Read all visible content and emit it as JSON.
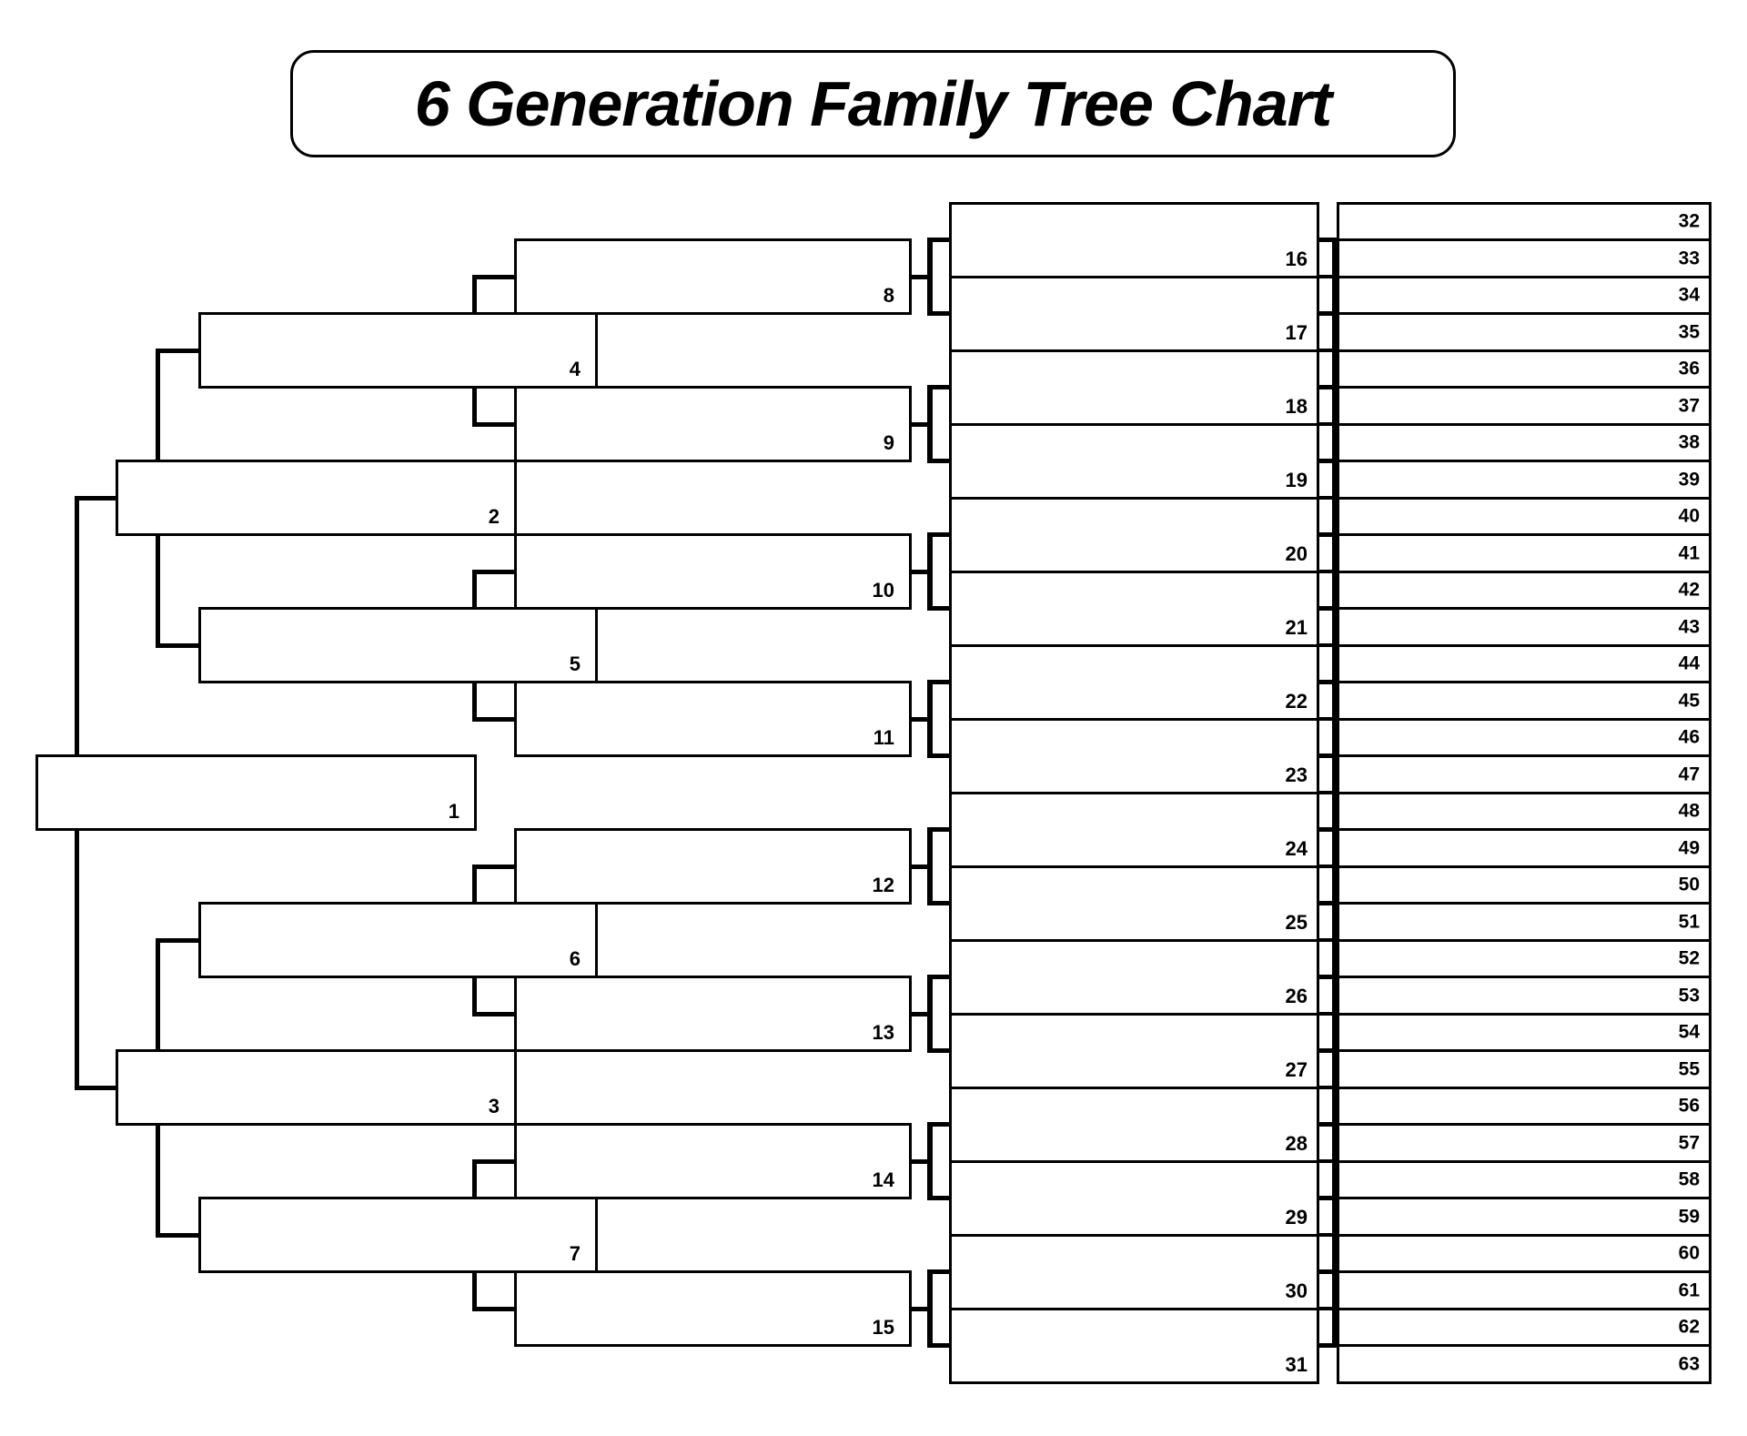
{
  "title": "6 Generation Family Tree Chart",
  "colors": {
    "line": "#000000",
    "background": "#ffffff"
  },
  "boxes": [
    {
      "number": "1"
    },
    {
      "number": "2"
    },
    {
      "number": "3"
    },
    {
      "number": "4"
    },
    {
      "number": "5"
    },
    {
      "number": "6"
    },
    {
      "number": "7"
    },
    {
      "number": "8"
    },
    {
      "number": "9"
    },
    {
      "number": "10"
    },
    {
      "number": "11"
    },
    {
      "number": "12"
    },
    {
      "number": "13"
    },
    {
      "number": "14"
    },
    {
      "number": "15"
    },
    {
      "number": "16"
    },
    {
      "number": "17"
    },
    {
      "number": "18"
    },
    {
      "number": "19"
    },
    {
      "number": "20"
    },
    {
      "number": "21"
    },
    {
      "number": "22"
    },
    {
      "number": "23"
    },
    {
      "number": "24"
    },
    {
      "number": "25"
    },
    {
      "number": "26"
    },
    {
      "number": "27"
    },
    {
      "number": "28"
    },
    {
      "number": "29"
    },
    {
      "number": "30"
    },
    {
      "number": "31"
    },
    {
      "number": "32"
    },
    {
      "number": "33"
    },
    {
      "number": "34"
    },
    {
      "number": "35"
    },
    {
      "number": "36"
    },
    {
      "number": "37"
    },
    {
      "number": "38"
    },
    {
      "number": "39"
    },
    {
      "number": "40"
    },
    {
      "number": "41"
    },
    {
      "number": "42"
    },
    {
      "number": "43"
    },
    {
      "number": "44"
    },
    {
      "number": "45"
    },
    {
      "number": "46"
    },
    {
      "number": "47"
    },
    {
      "number": "48"
    },
    {
      "number": "49"
    },
    {
      "number": "50"
    },
    {
      "number": "51"
    },
    {
      "number": "52"
    },
    {
      "number": "53"
    },
    {
      "number": "54"
    },
    {
      "number": "55"
    },
    {
      "number": "56"
    },
    {
      "number": "57"
    },
    {
      "number": "58"
    },
    {
      "number": "59"
    },
    {
      "number": "60"
    },
    {
      "number": "61"
    },
    {
      "number": "62"
    },
    {
      "number": "63"
    }
  ]
}
